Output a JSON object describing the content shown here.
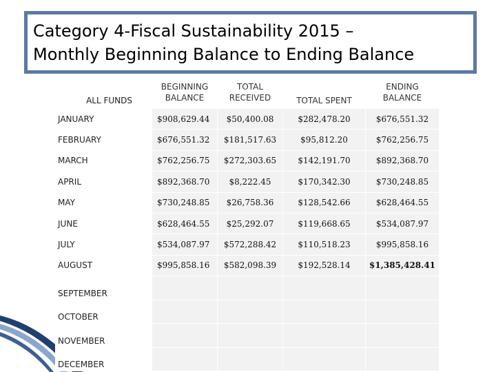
{
  "title": {
    "line1": "Category 4-Fiscal Sustainability 2015 –",
    "line2": "Monthly Beginning Balance to Ending Balance"
  },
  "table": {
    "headers": {
      "all_funds": "ALL FUNDS",
      "beginning_balance": "BEGINNING BALANCE",
      "total_received": "TOTAL RECEIVED",
      "total_spent": "TOTAL SPENT",
      "ending_balance": "ENDING BALANCE"
    },
    "rows": [
      {
        "month": "JANUARY",
        "beginning": "$908,629.44",
        "received": "$50,400.08",
        "spent": "$282,478.20",
        "ending": "$676,551.32"
      },
      {
        "month": "FEBRUARY",
        "beginning": "$676,551.32",
        "received": "$181,517.63",
        "spent": "$95,812.20",
        "ending": "$762,256.75"
      },
      {
        "month": "MARCH",
        "beginning": "$762,256.75",
        "received": "$272,303.65",
        "spent": "$142,191.70",
        "ending": "$892,368.70"
      },
      {
        "month": "APRIL",
        "beginning": "$892,368.70",
        "received": "$8,222.45",
        "spent": "$170,342.30",
        "ending": "$730,248.85"
      },
      {
        "month": "MAY",
        "beginning": "$730,248.85",
        "received": "$26,758.36",
        "spent": "$128,542.66",
        "ending": "$628,464.55"
      },
      {
        "month": "JUNE",
        "beginning": "$628,464.55",
        "received": "$25,292.07",
        "spent": "$119,668.65",
        "ending": "$534,087.97"
      },
      {
        "month": "JULY",
        "beginning": "$534,087.97",
        "received": "$572,288.42",
        "spent": "$110,518.23",
        "ending": "$995,858.16"
      },
      {
        "month": "AUGUST",
        "beginning": "$995,858.16",
        "received": "$582,098.39",
        "spent": "$192,528.14",
        "ending": "$1,385,428.41"
      },
      {
        "month": "SEPTEMBER",
        "beginning": "",
        "received": "",
        "spent": "",
        "ending": ""
      },
      {
        "month": "OCTOBER",
        "beginning": "",
        "received": "",
        "spent": "",
        "ending": ""
      },
      {
        "month": "NOVEMBER",
        "beginning": "",
        "received": "",
        "spent": "",
        "ending": ""
      },
      {
        "month": "DECEMBER",
        "beginning": "",
        "received": "",
        "spent": "",
        "ending": ""
      }
    ]
  },
  "colors": {
    "title_border": "#5a79a6",
    "cell_fill": "#f2f2f2",
    "swoosh_dark": "#1f3f6e",
    "swoosh_light": "#8aa6cf"
  }
}
